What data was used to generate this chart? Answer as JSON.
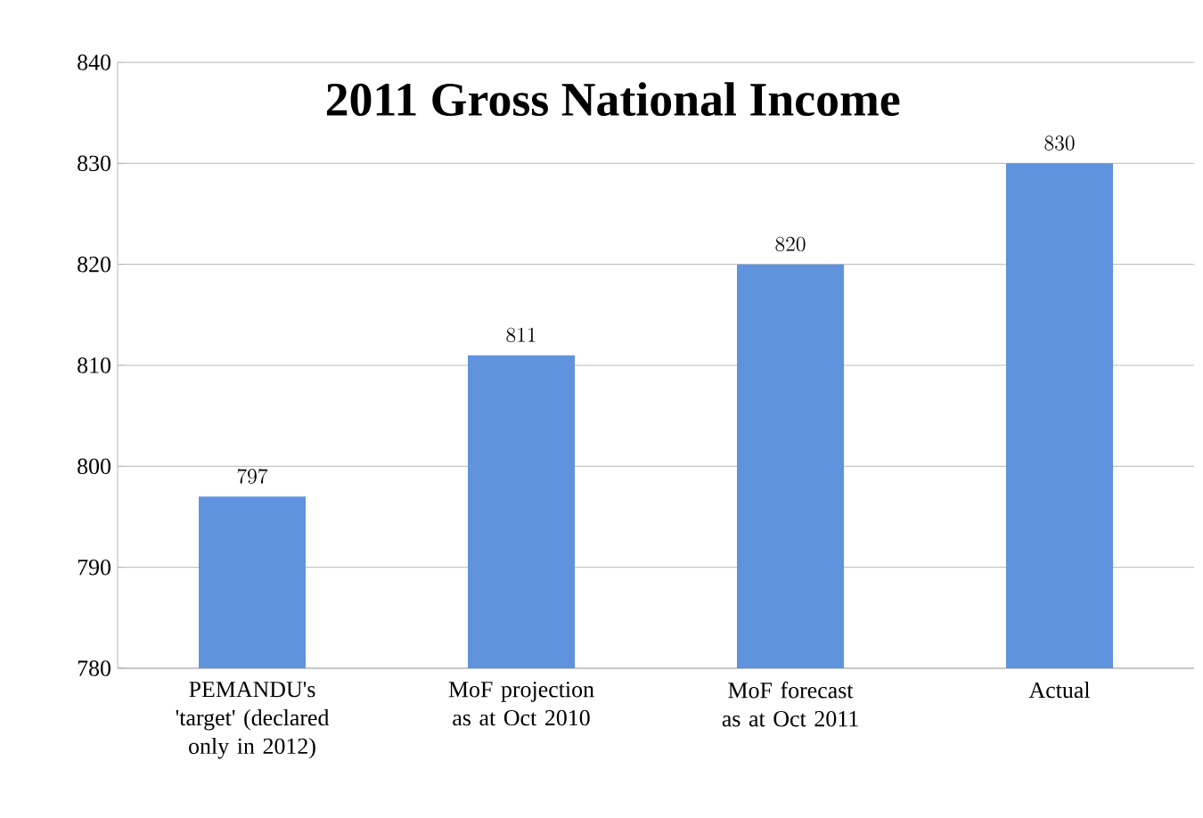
{
  "chart_data": {
    "type": "bar",
    "title": "2011 Gross National Income",
    "categories": [
      "PEMANDU's 'target' (declared only in 2012)",
      "MoF projection as at Oct 2010",
      "MoF forecast as at Oct 2011",
      "Actual"
    ],
    "values": [
      797,
      811,
      820,
      830
    ],
    "color": "#5f93dd",
    "ylim": [
      780,
      840
    ],
    "yticks": [
      780,
      790,
      800,
      810,
      820,
      830,
      840
    ],
    "grid": "y",
    "data_labels": true
  }
}
